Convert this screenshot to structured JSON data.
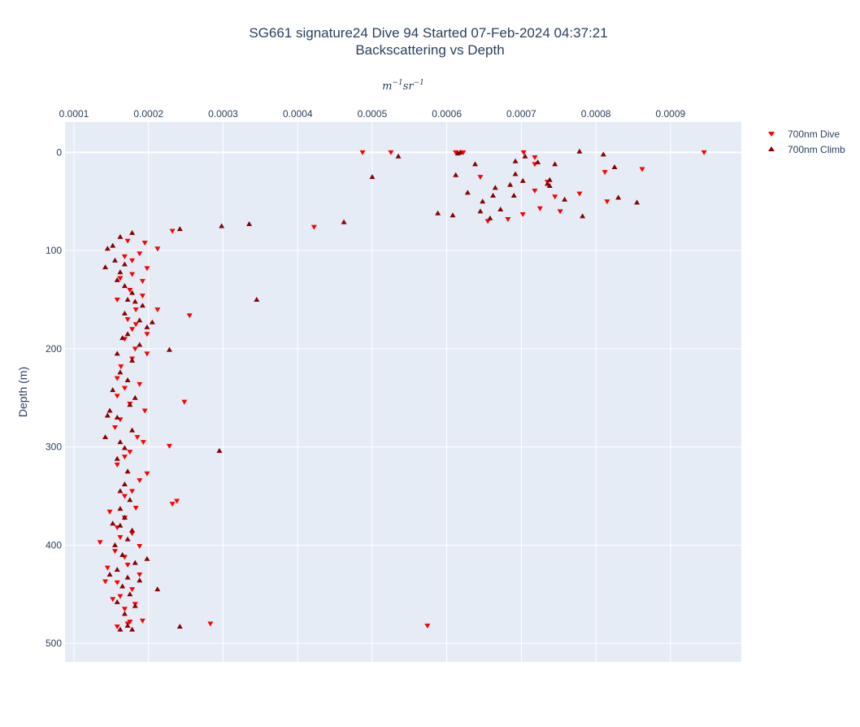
{
  "chart_data": {
    "type": "scatter",
    "title_line1": "SG661 signature24 Dive 94 Started 07-Feb-2024 04:37:21",
    "title_line2": "Backscattering vs Depth",
    "xlabel_base": "m",
    "xlabel_exp1": "−1",
    "xlabel_mid": "sr",
    "xlabel_exp2": "−1",
    "ylabel": "Depth (m)",
    "xaxis_side": "top",
    "yaxis_reversed": true,
    "xlim": [
      8.8e-05,
      0.000995
    ],
    "ylim": [
      519,
      -31
    ],
    "grid": true,
    "legend_placement": "top-right",
    "x_tick_values": [
      0.0001,
      0.0002,
      0.0003,
      0.0004,
      0.0005,
      0.0006,
      0.0007,
      0.0008,
      0.0009
    ],
    "x_tick_labels": [
      "0.0001",
      "0.0002",
      "0.0003",
      "0.0004",
      "0.0005",
      "0.0006",
      "0.0007",
      "0.0008",
      "0.0009"
    ],
    "y_tick_values": [
      0,
      100,
      200,
      300,
      400,
      500
    ],
    "y_tick_labels": [
      "0",
      "100",
      "200",
      "300",
      "400",
      "500"
    ],
    "series": [
      {
        "name": "700nm Dive",
        "color": "#ff0000",
        "marker": "triangle-down",
        "points": [
          [
            0.000487,
            0
          ],
          [
            0.000525,
            0
          ],
          [
            0.000612,
            0
          ],
          [
            0.000622,
            0
          ],
          [
            0.000703,
            0
          ],
          [
            0.000945,
            0
          ],
          [
            0.000718,
            5
          ],
          [
            0.000718,
            12
          ],
          [
            0.000812,
            20
          ],
          [
            0.000862,
            17
          ],
          [
            0.000645,
            25
          ],
          [
            0.000735,
            30
          ],
          [
            0.000718,
            39
          ],
          [
            0.000778,
            42
          ],
          [
            0.000745,
            45
          ],
          [
            0.000752,
            60
          ],
          [
            0.000725,
            57
          ],
          [
            0.000682,
            68
          ],
          [
            0.000655,
            70
          ],
          [
            0.000815,
            50
          ],
          [
            0.000702,
            63
          ],
          [
            0.000232,
            80
          ],
          [
            0.000422,
            76
          ],
          [
            0.000172,
            90
          ],
          [
            0.000195,
            92
          ],
          [
            0.000212,
            98
          ],
          [
            0.000188,
            103
          ],
          [
            0.000168,
            106
          ],
          [
            0.000178,
            110
          ],
          [
            0.000198,
            118
          ],
          [
            0.000178,
            124
          ],
          [
            0.000162,
            128
          ],
          [
            0.000192,
            131
          ],
          [
            0.000175,
            140
          ],
          [
            0.000192,
            146
          ],
          [
            0.000183,
            160
          ],
          [
            0.000172,
            170
          ],
          [
            0.000178,
            180
          ],
          [
            0.000198,
            185
          ],
          [
            0.000212,
            160
          ],
          [
            0.000255,
            166
          ],
          [
            0.000158,
            150
          ],
          [
            0.000183,
            175
          ],
          [
            0.000168,
            190
          ],
          [
            0.000182,
            200
          ],
          [
            0.000198,
            205
          ],
          [
            0.000178,
            210
          ],
          [
            0.000163,
            218
          ],
          [
            0.000158,
            230
          ],
          [
            0.000188,
            236
          ],
          [
            0.000168,
            240
          ],
          [
            0.000158,
            248
          ],
          [
            0.000248,
            254
          ],
          [
            0.000175,
            256
          ],
          [
            0.000195,
            263
          ],
          [
            0.000162,
            272
          ],
          [
            0.000155,
            280
          ],
          [
            0.000185,
            290
          ],
          [
            0.000228,
            299
          ],
          [
            0.000193,
            295
          ],
          [
            0.000175,
            305
          ],
          [
            0.000168,
            310
          ],
          [
            0.000158,
            318
          ],
          [
            0.000198,
            327
          ],
          [
            0.000188,
            334
          ],
          [
            0.000178,
            345
          ],
          [
            0.000168,
            350
          ],
          [
            0.000238,
            355
          ],
          [
            0.000232,
            358
          ],
          [
            0.000183,
            362
          ],
          [
            0.000148,
            366
          ],
          [
            0.000168,
            372
          ],
          [
            0.000158,
            382
          ],
          [
            0.000178,
            388
          ],
          [
            0.000162,
            392
          ],
          [
            0.000135,
            397
          ],
          [
            0.000188,
            401
          ],
          [
            0.000155,
            406
          ],
          [
            0.000168,
            412
          ],
          [
            0.000172,
            420
          ],
          [
            0.000145,
            423
          ],
          [
            0.000188,
            430
          ],
          [
            0.000158,
            438
          ],
          [
            0.000142,
            437
          ],
          [
            0.000178,
            445
          ],
          [
            0.000162,
            452
          ],
          [
            0.000152,
            455
          ],
          [
            0.000182,
            460
          ],
          [
            0.000168,
            465
          ],
          [
            0.000192,
            477
          ],
          [
            0.000172,
            480
          ],
          [
            0.000283,
            480
          ],
          [
            0.000574,
            482
          ],
          [
            0.000158,
            483
          ],
          [
            0.000175,
            478
          ]
        ]
      },
      {
        "name": "700nm Climb",
        "color": "#8b0000",
        "marker": "triangle-up",
        "points": [
          [
            0.000535,
            4
          ],
          [
            0.000615,
            1
          ],
          [
            0.000618,
            0
          ],
          [
            0.000705,
            4
          ],
          [
            0.000692,
            9
          ],
          [
            0.000722,
            10
          ],
          [
            0.000745,
            12
          ],
          [
            0.000778,
            -1
          ],
          [
            0.00081,
            2
          ],
          [
            0.000825,
            15
          ],
          [
            0.000612,
            23
          ],
          [
            0.000638,
            12
          ],
          [
            0.000692,
            22
          ],
          [
            0.000702,
            29
          ],
          [
            0.000738,
            28
          ],
          [
            0.000735,
            32
          ],
          [
            0.000685,
            33
          ],
          [
            0.000665,
            36
          ],
          [
            0.000628,
            41
          ],
          [
            0.000662,
            44
          ],
          [
            0.00069,
            44
          ],
          [
            0.000758,
            48
          ],
          [
            0.00083,
            46
          ],
          [
            0.000855,
            51
          ],
          [
            0.000648,
            50
          ],
          [
            0.000645,
            60
          ],
          [
            0.000672,
            58
          ],
          [
            0.000782,
            65
          ],
          [
            0.000588,
            62
          ],
          [
            0.000608,
            64
          ],
          [
            0.000658,
            67
          ],
          [
            0.000738,
            34
          ],
          [
            0.0005,
            25
          ],
          [
            0.000242,
            78
          ],
          [
            0.000298,
            75
          ],
          [
            0.000335,
            73
          ],
          [
            0.000462,
            71
          ],
          [
            0.000345,
            150
          ],
          [
            0.000295,
            304
          ],
          [
            0.000242,
            483
          ],
          [
            0.000178,
            82
          ],
          [
            0.000162,
            86
          ],
          [
            0.000152,
            95
          ],
          [
            0.000145,
            98
          ],
          [
            0.000155,
            110
          ],
          [
            0.000168,
            114
          ],
          [
            0.000142,
            117
          ],
          [
            0.000162,
            122
          ],
          [
            0.000158,
            130
          ],
          [
            0.000168,
            136
          ],
          [
            0.000178,
            143
          ],
          [
            0.000172,
            150
          ],
          [
            0.000182,
            152
          ],
          [
            0.000192,
            156
          ],
          [
            0.000168,
            164
          ],
          [
            0.000188,
            171
          ],
          [
            0.000205,
            173
          ],
          [
            0.000198,
            178
          ],
          [
            0.000172,
            185
          ],
          [
            0.000165,
            189
          ],
          [
            0.000188,
            196
          ],
          [
            0.000158,
            205
          ],
          [
            0.000178,
            212
          ],
          [
            0.000228,
            201
          ],
          [
            0.000162,
            224
          ],
          [
            0.000172,
            232
          ],
          [
            0.000152,
            242
          ],
          [
            0.000182,
            250
          ],
          [
            0.000175,
            257
          ],
          [
            0.000148,
            263
          ],
          [
            0.000158,
            270
          ],
          [
            0.000178,
            283
          ],
          [
            0.000162,
            295
          ],
          [
            0.000142,
            290
          ],
          [
            0.000168,
            301
          ],
          [
            0.000158,
            312
          ],
          [
            0.000172,
            325
          ],
          [
            0.000168,
            338
          ],
          [
            0.000162,
            345
          ],
          [
            0.000175,
            354
          ],
          [
            0.000162,
            363
          ],
          [
            0.000168,
            372
          ],
          [
            0.000152,
            378
          ],
          [
            0.000178,
            385
          ],
          [
            0.000172,
            394
          ],
          [
            0.000155,
            400
          ],
          [
            0.000165,
            410
          ],
          [
            0.000182,
            418
          ],
          [
            0.000158,
            425
          ],
          [
            0.000172,
            433
          ],
          [
            0.000148,
            430
          ],
          [
            0.000165,
            442
          ],
          [
            0.000212,
            445
          ],
          [
            0.000175,
            450
          ],
          [
            0.000158,
            458
          ],
          [
            0.000182,
            462
          ],
          [
            0.000168,
            470
          ],
          [
            0.000172,
            482
          ],
          [
            0.000162,
            486
          ],
          [
            0.000178,
            486
          ],
          [
            0.000198,
            414
          ],
          [
            0.000188,
            436
          ],
          [
            0.000162,
            380
          ],
          [
            0.000145,
            268
          ]
        ]
      }
    ]
  }
}
